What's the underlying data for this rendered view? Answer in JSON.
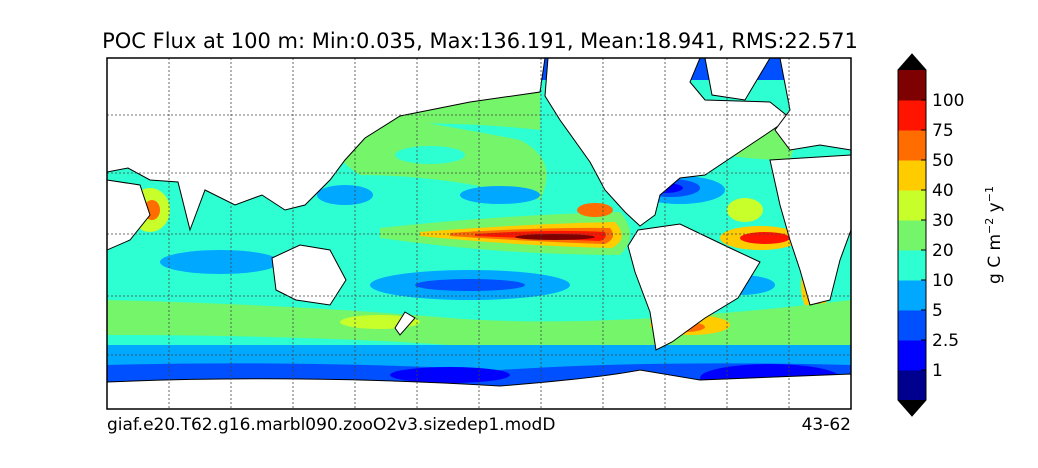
{
  "title": "POC Flux at 100 m: Min:0.035, Max:136.191, Mean:18.941, RMS:22.571",
  "footer": {
    "case": "giaf.e20.T62.g16.marbl090.zooO2v3.sizedep1.modD",
    "years": "43-62"
  },
  "colorbar": {
    "ticks": [
      "1",
      "2.5",
      "5",
      "10",
      "20",
      "30",
      "40",
      "50",
      "75",
      "100"
    ],
    "colors": [
      "#00008f",
      "#0000ff",
      "#0050ff",
      "#00a8ff",
      "#2effd2",
      "#74f56a",
      "#c8ff2a",
      "#ffcc00",
      "#ff6c00",
      "#ff1400",
      "#7f0000"
    ],
    "extend_color": "#000000",
    "label": {
      "base1": "g C m",
      "exp1": "−2",
      "base2": " y",
      "exp2": "−1"
    }
  }
}
